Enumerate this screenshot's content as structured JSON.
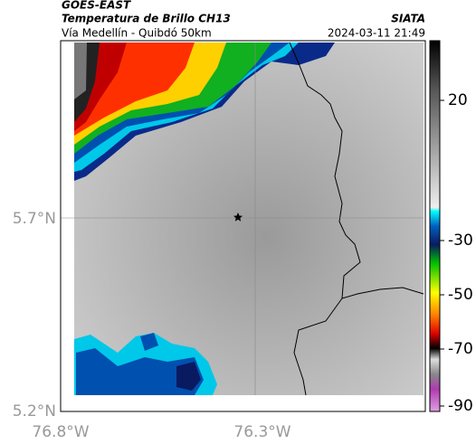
{
  "header": {
    "satellite": "GOES-EAST",
    "product": "Temperatura de Brillo CH13",
    "region": "Vía Medellín - Quibdó 50km",
    "source": "SIATA",
    "timestamp": "2024-03-11 21:49"
  },
  "map": {
    "lat_labels": [
      "5.7°N",
      "5.2°N"
    ],
    "lon_labels": [
      "76.8°W",
      "76.3°W"
    ]
  },
  "colorbar": {
    "ticks": [
      20,
      -30,
      -50,
      -70,
      -90
    ]
  }
}
